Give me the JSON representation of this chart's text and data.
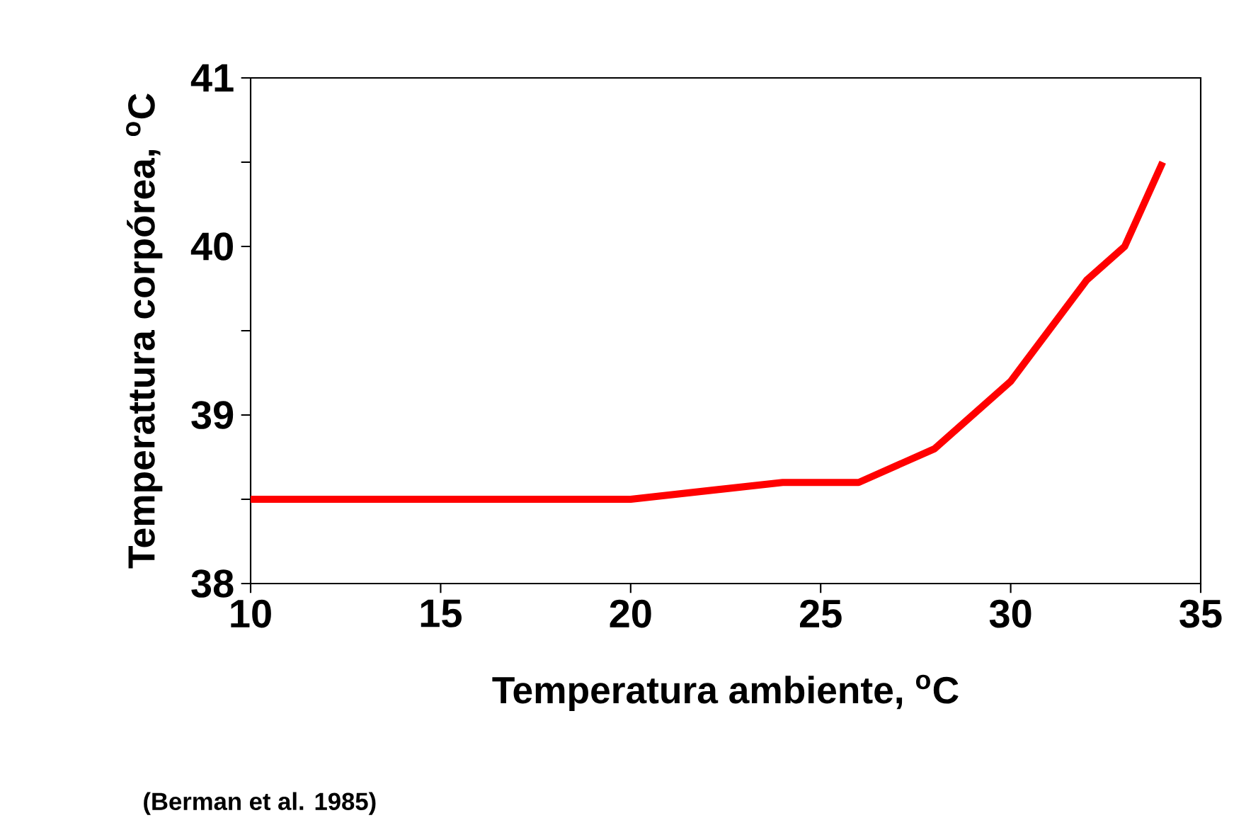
{
  "chart_data": {
    "type": "line",
    "xlabel": "Temperatura ambiente, $^{o}$C",
    "ylabel": "Temperattura corpórea, $^{o}$C",
    "x": [
      10,
      20,
      24,
      26,
      28,
      30,
      32,
      33,
      34
    ],
    "series": [
      {
        "color": "#ff0000",
        "values": [
          38.5,
          38.5,
          38.6,
          38.6,
          38.8,
          39.2,
          39.8,
          40.0,
          40.5
        ]
      }
    ],
    "xlim": [
      10,
      35
    ],
    "xticks": [
      10,
      15,
      20,
      25,
      30,
      35
    ],
    "ylim": [
      38,
      41
    ],
    "yticks": [
      38,
      {
        "value": 38.5,
        "label": null
      },
      39,
      {
        "value": 39.5,
        "label": null
      },
      40,
      {
        "value": 40.5,
        "label": null
      },
      41
    ],
    "grid": false,
    "marker": "none",
    "line_style": "solid",
    "annotations": [
      "(Berman et al. 1985)"
    ]
  }
}
